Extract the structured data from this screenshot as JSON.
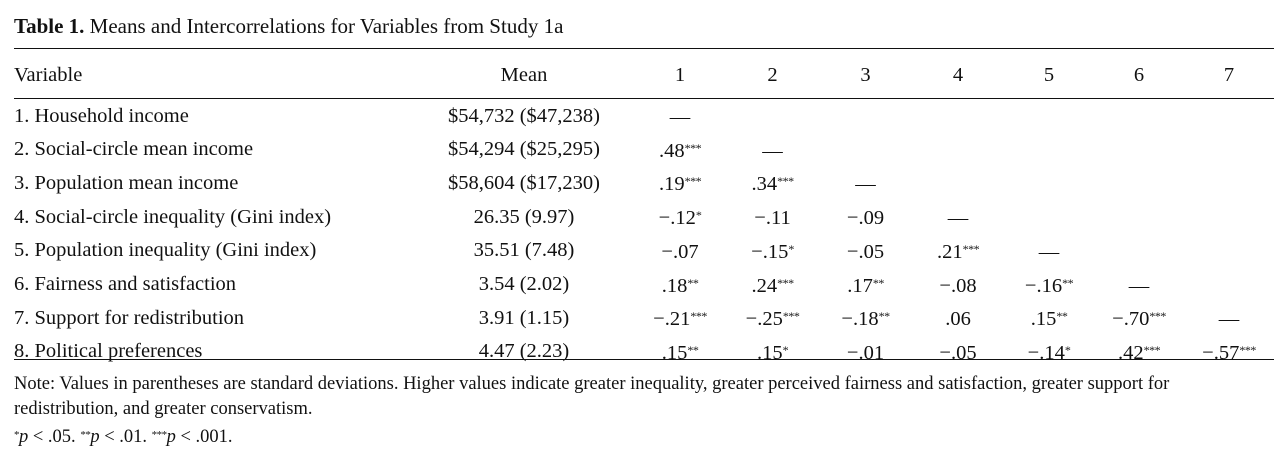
{
  "table": {
    "label": "Table 1.",
    "title": "Means and Intercorrelations for Variables from Study 1a",
    "header": {
      "variable": "Variable",
      "mean": "Mean",
      "cols": [
        "1",
        "2",
        "3",
        "4",
        "5",
        "6",
        "7"
      ]
    },
    "rows": [
      {
        "variable": "1. Household income",
        "mean": "$54,732 ($47,238)",
        "cells": [
          {
            "v": "—",
            "s": ""
          },
          {
            "v": "",
            "s": ""
          },
          {
            "v": "",
            "s": ""
          },
          {
            "v": "",
            "s": ""
          },
          {
            "v": "",
            "s": ""
          },
          {
            "v": "",
            "s": ""
          },
          {
            "v": "",
            "s": ""
          }
        ]
      },
      {
        "variable": "2. Social-circle mean income",
        "mean": "$54,294 ($25,295)",
        "cells": [
          {
            "v": ".48",
            "s": "***"
          },
          {
            "v": "—",
            "s": ""
          },
          {
            "v": "",
            "s": ""
          },
          {
            "v": "",
            "s": ""
          },
          {
            "v": "",
            "s": ""
          },
          {
            "v": "",
            "s": ""
          },
          {
            "v": "",
            "s": ""
          }
        ]
      },
      {
        "variable": "3. Population mean income",
        "mean": "$58,604 ($17,230)",
        "cells": [
          {
            "v": ".19",
            "s": "***"
          },
          {
            "v": ".34",
            "s": "***"
          },
          {
            "v": "—",
            "s": ""
          },
          {
            "v": "",
            "s": ""
          },
          {
            "v": "",
            "s": ""
          },
          {
            "v": "",
            "s": ""
          },
          {
            "v": "",
            "s": ""
          }
        ]
      },
      {
        "variable": "4. Social-circle inequality (Gini index)",
        "mean": "26.35 (9.97)",
        "cells": [
          {
            "v": "−.12",
            "s": "*"
          },
          {
            "v": "−.11",
            "s": ""
          },
          {
            "v": "−.09",
            "s": ""
          },
          {
            "v": "—",
            "s": ""
          },
          {
            "v": "",
            "s": ""
          },
          {
            "v": "",
            "s": ""
          },
          {
            "v": "",
            "s": ""
          }
        ]
      },
      {
        "variable": "5. Population inequality (Gini index)",
        "mean": "35.51 (7.48)",
        "cells": [
          {
            "v": "−.07",
            "s": ""
          },
          {
            "v": "−.15",
            "s": "*"
          },
          {
            "v": "−.05",
            "s": ""
          },
          {
            "v": ".21",
            "s": "***"
          },
          {
            "v": "—",
            "s": ""
          },
          {
            "v": "",
            "s": ""
          },
          {
            "v": "",
            "s": ""
          }
        ]
      },
      {
        "variable": "6. Fairness and satisfaction",
        "mean": "3.54 (2.02)",
        "cells": [
          {
            "v": ".18",
            "s": "**"
          },
          {
            "v": ".24",
            "s": "***"
          },
          {
            "v": ".17",
            "s": "**"
          },
          {
            "v": "−.08",
            "s": ""
          },
          {
            "v": "−.16",
            "s": "**"
          },
          {
            "v": "—",
            "s": ""
          },
          {
            "v": "",
            "s": ""
          }
        ]
      },
      {
        "variable": "7. Support for redistribution",
        "mean": "3.91 (1.15)",
        "cells": [
          {
            "v": "−.21",
            "s": "***"
          },
          {
            "v": "−.25",
            "s": "***"
          },
          {
            "v": "−.18",
            "s": "**"
          },
          {
            "v": ".06",
            "s": ""
          },
          {
            "v": ".15",
            "s": "**"
          },
          {
            "v": "−.70",
            "s": "***"
          },
          {
            "v": "—",
            "s": ""
          }
        ]
      },
      {
        "variable": "8. Political preferences",
        "mean": "4.47 (2.23)",
        "cells": [
          {
            "v": ".15",
            "s": "**"
          },
          {
            "v": ".15",
            "s": "*"
          },
          {
            "v": "−.01",
            "s": ""
          },
          {
            "v": "−.05",
            "s": ""
          },
          {
            "v": "−.14",
            "s": "*"
          },
          {
            "v": ".42",
            "s": "***"
          },
          {
            "v": "−.57",
            "s": "***"
          }
        ]
      }
    ]
  },
  "note": {
    "text": "Note: Values in parentheses are standard deviations. Higher values indicate greater inequality, greater perceived fairness and satisfaction, greater support for redistribution, and greater conservatism.",
    "significance": [
      {
        "stars": "*",
        "p": "p",
        "rest": " < .05. "
      },
      {
        "stars": "**",
        "p": "p",
        "rest": " < .01. "
      },
      {
        "stars": "***",
        "p": "p",
        "rest": " < .001."
      }
    ]
  }
}
